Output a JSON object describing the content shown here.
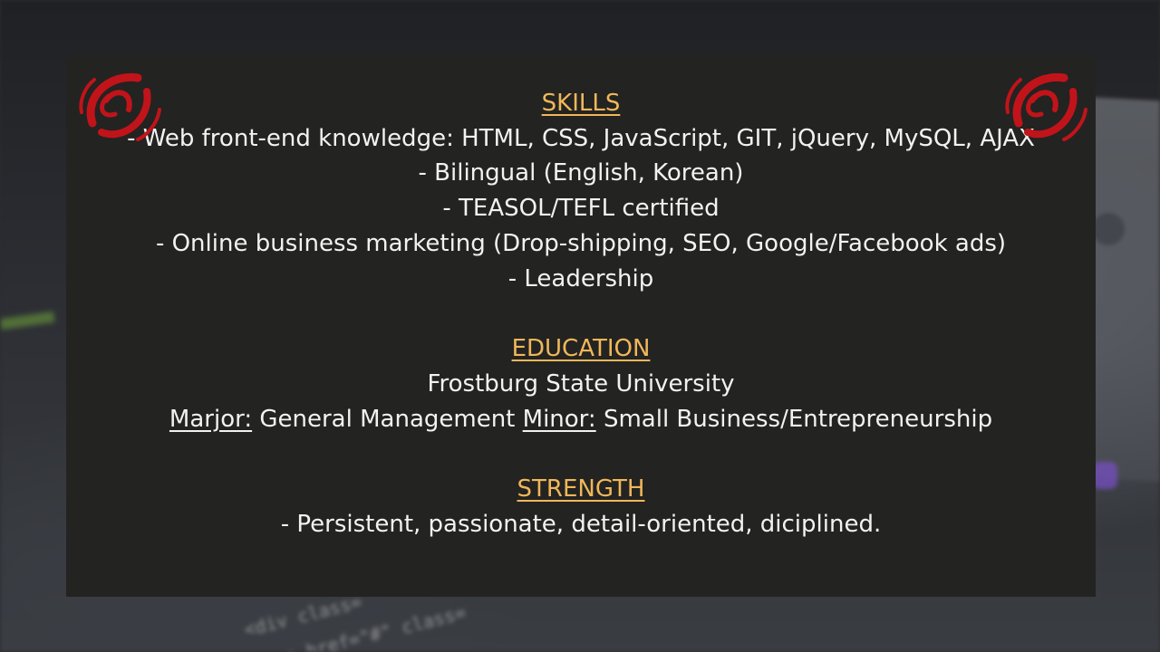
{
  "skills": {
    "heading": "SKILLS",
    "items": [
      "- Web front-end knowledge: HTML, CSS, JavaScript, GIT, jQuery, MySQL, AJAX",
      "- Bilingual (English, Korean)",
      "- TEASOL/TEFL certified",
      "- Online business marketing (Drop-shipping, SEO, Google/Facebook ads)",
      "- Leadership"
    ]
  },
  "education": {
    "heading": "EDUCATION",
    "school": "Frostburg State University",
    "major_label": "Marjor:",
    "major_value": " General Management ",
    "minor_label": "Minor:",
    "minor_value": " Small Business/Entrepreneurship"
  },
  "strength": {
    "heading": "STRENGTH",
    "text": "- Persistent, passionate, detail-oriented, diciplined."
  },
  "background_code": {
    "line1": "<div class= ",
    "line2": "<a href=\"#\" class= "
  },
  "colors": {
    "heading": "#f0b75a",
    "text": "#f2f2f2",
    "card": "#232322",
    "logo": "#c0141a"
  },
  "icons": {
    "left_logo": "red-swirl-emblem-icon",
    "right_logo": "red-swirl-emblem-icon"
  }
}
